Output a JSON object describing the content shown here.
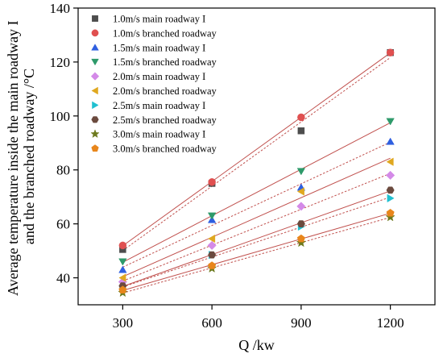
{
  "chart_data": {
    "type": "scatter",
    "x": [
      300,
      600,
      900,
      1200
    ],
    "xlabel": "Q /kw",
    "ylabel_lines": [
      "Average temperature inside the main roadway I",
      "and the branched roadway /°C"
    ],
    "xlim": [
      150,
      1350
    ],
    "ylim": [
      30,
      140
    ],
    "xticks": [
      300,
      600,
      900,
      1200
    ],
    "yticks": [
      40,
      60,
      80,
      100,
      120,
      140
    ],
    "grid": false,
    "legend_position": "top-left",
    "fit_line_color": "#c0504d",
    "series": [
      {
        "name": "1.0m/s main roadway I",
        "values": [
          50.5,
          75.0,
          94.5,
          123.5
        ],
        "marker": "square",
        "color": "#4d4d4d",
        "fit": "dash"
      },
      {
        "name": "1.0m/s branched roadway",
        "values": [
          52.0,
          75.5,
          99.5,
          123.5
        ],
        "marker": "circle",
        "color": "#e05050",
        "fit": "solid"
      },
      {
        "name": "1.5m/s main roadway I",
        "values": [
          43.0,
          61.5,
          73.5,
          90.5
        ],
        "marker": "triangle-up",
        "color": "#2f5fe0",
        "fit": "dash"
      },
      {
        "name": "1.5m/s branched roadway",
        "values": [
          46.0,
          63.0,
          79.5,
          98.0
        ],
        "marker": "triangle-down",
        "color": "#2e9a6a",
        "fit": "solid"
      },
      {
        "name": "2.0m/s main roadway I",
        "values": [
          38.5,
          52.0,
          66.5,
          78.0
        ],
        "marker": "diamond",
        "color": "#d48ae8",
        "fit": "dash"
      },
      {
        "name": "2.0m/s branched roadway",
        "values": [
          40.0,
          54.5,
          72.0,
          83.0
        ],
        "marker": "triangle-left",
        "color": "#e0a820",
        "fit": "solid"
      },
      {
        "name": "2.5m/s main roadway I",
        "values": [
          36.0,
          48.5,
          59.0,
          69.5
        ],
        "marker": "triangle-right",
        "color": "#20c0d0",
        "fit": "dash"
      },
      {
        "name": "2.5m/s branched roadway",
        "values": [
          37.0,
          48.5,
          60.0,
          72.5
        ],
        "marker": "hexagon",
        "color": "#6b4a3e",
        "fit": "solid"
      },
      {
        "name": "3.0m/s main roadway I",
        "values": [
          34.5,
          43.5,
          53.0,
          62.5
        ],
        "marker": "star",
        "color": "#6e7a1e",
        "fit": "dash"
      },
      {
        "name": "3.0m/s branched roadway",
        "values": [
          35.5,
          44.5,
          54.5,
          64.0
        ],
        "marker": "pentagon",
        "color": "#e8861c",
        "fit": "solid"
      }
    ]
  }
}
